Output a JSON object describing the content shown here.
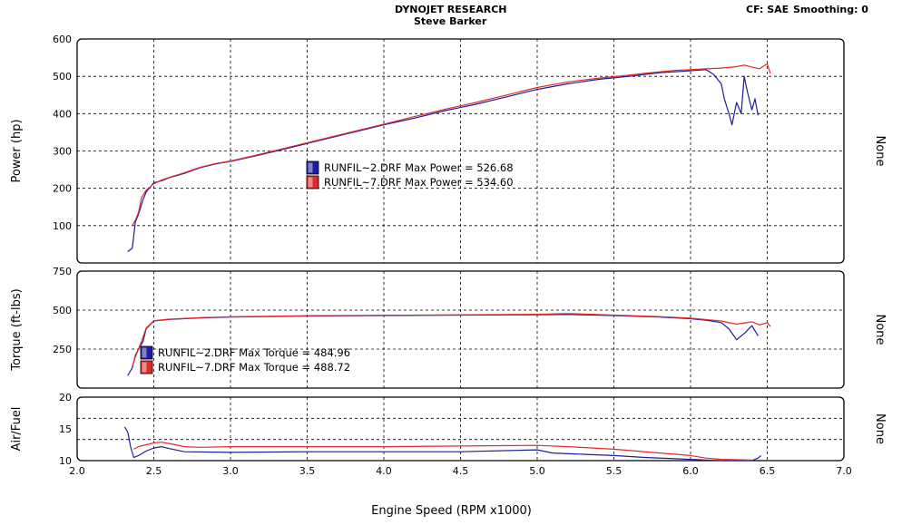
{
  "header": {
    "company": "DYNOJET RESEARCH",
    "operator": "Steve Barker",
    "cf_label": "CF: SAE",
    "smoothing_label": "Smoothing: 0"
  },
  "colors": {
    "run2": "#1d1d9e",
    "run7": "#e12a2a",
    "grid": "#000000"
  },
  "chart_data": {
    "type": "line",
    "xlabel": "Engine Speed (RPM x1000)",
    "xlim": [
      2.0,
      7.0
    ],
    "x_ticks": [
      "2.0",
      "2.5",
      "3.0",
      "3.5",
      "4.0",
      "4.5",
      "5.0",
      "5.5",
      "6.0",
      "6.5",
      "7.0"
    ],
    "grid": true,
    "panels": [
      {
        "id": "power",
        "ylabel": "Power (hp)",
        "right_label": "None",
        "ylim": [
          0,
          600
        ],
        "y_ticks": [
          "600",
          "500",
          "400",
          "300",
          "200",
          "100"
        ],
        "legend": [
          {
            "swatch": "blue",
            "text": "RUNFIL~2.DRF Max Power = 526.68"
          },
          {
            "swatch": "red",
            "text": "RUNFIL~7.DRF Max Power = 534.60"
          }
        ],
        "series": [
          {
            "name": "RUNFIL~2.DRF",
            "color": "blue",
            "x": [
              2.33,
              2.36,
              2.38,
              2.4,
              2.43,
              2.45,
              2.5,
              2.55,
              2.6,
              2.7,
              2.8,
              2.9,
              3.0,
              3.2,
              3.4,
              3.6,
              3.8,
              4.0,
              4.2,
              4.4,
              4.6,
              4.8,
              5.0,
              5.2,
              5.4,
              5.6,
              5.7,
              5.8,
              5.9,
              6.0,
              6.1,
              6.15,
              6.2,
              6.22,
              6.25,
              6.27,
              6.3,
              6.33,
              6.35,
              6.37,
              6.4,
              6.42,
              6.44
            ],
            "y": [
              30,
              40,
              110,
              130,
              170,
              190,
              215,
              220,
              228,
              240,
              255,
              265,
              272,
              290,
              310,
              330,
              350,
              370,
              388,
              408,
              425,
              445,
              465,
              480,
              492,
              500,
              505,
              510,
              512,
              515,
              518,
              505,
              480,
              440,
              400,
              370,
              430,
              400,
              500,
              460,
              410,
              440,
              395
            ]
          },
          {
            "name": "RUNFIL~7.DRF",
            "color": "red",
            "x": [
              2.36,
              2.38,
              2.4,
              2.42,
              2.45,
              2.5,
              2.55,
              2.6,
              2.7,
              2.8,
              2.9,
              3.0,
              3.2,
              3.4,
              3.6,
              3.8,
              4.0,
              4.2,
              4.4,
              4.6,
              4.8,
              5.0,
              5.2,
              5.4,
              5.6,
              5.7,
              5.8,
              5.9,
              6.0,
              6.1,
              6.2,
              6.3,
              6.35,
              6.4,
              6.45,
              6.5,
              6.52
            ],
            "y": [
              100,
              115,
              135,
              175,
              195,
              212,
              222,
              229,
              242,
              256,
              266,
              273,
              292,
              312,
              332,
              352,
              372,
              392,
              412,
              430,
              450,
              470,
              485,
              495,
              503,
              508,
              512,
              516,
              518,
              520,
              522,
              526,
              530,
              525,
              520,
              534,
              508
            ]
          }
        ]
      },
      {
        "id": "torque",
        "ylabel": "Torque (ft-lbs)",
        "right_label": "None",
        "ylim": [
          0,
          750
        ],
        "y_ticks": [
          "750",
          "500",
          "250"
        ],
        "legend": [
          {
            "swatch": "blue",
            "text": "RUNFIL~2.DRF Max Torque = 484.96"
          },
          {
            "swatch": "red",
            "text": "RUNFIL~7.DRF Max Torque = 488.72"
          }
        ],
        "series": [
          {
            "name": "RUNFIL~2.DRF",
            "color": "blue",
            "x": [
              2.33,
              2.36,
              2.38,
              2.4,
              2.43,
              2.45,
              2.5,
              2.6,
              2.8,
              3.0,
              3.5,
              4.0,
              4.5,
              5.0,
              5.2,
              5.5,
              5.8,
              6.0,
              6.1,
              6.2,
              6.25,
              6.3,
              6.35,
              6.4,
              6.44
            ],
            "y": [
              80,
              130,
              210,
              250,
              300,
              380,
              430,
              440,
              450,
              455,
              462,
              465,
              468,
              470,
              472,
              465,
              455,
              445,
              435,
              420,
              380,
              310,
              350,
              400,
              335
            ]
          },
          {
            "name": "RUNFIL~7.DRF",
            "color": "red",
            "x": [
              2.36,
              2.38,
              2.4,
              2.42,
              2.45,
              2.5,
              2.6,
              2.8,
              3.0,
              3.5,
              4.0,
              4.5,
              5.0,
              5.2,
              5.5,
              5.8,
              6.0,
              6.2,
              6.3,
              6.4,
              6.45,
              6.5,
              6.52
            ],
            "y": [
              140,
              200,
              250,
              300,
              385,
              432,
              442,
              452,
              457,
              464,
              467,
              470,
              473,
              478,
              468,
              458,
              448,
              430,
              410,
              425,
              405,
              420,
              395
            ]
          }
        ]
      },
      {
        "id": "af",
        "ylabel": "Air/Fuel",
        "right_label": "None",
        "ylim": [
          10,
          20
        ],
        "y_ticks": [
          "20",
          "15",
          "10"
        ],
        "series": [
          {
            "name": "RUNFIL~2.DRF",
            "color": "blue",
            "x": [
              2.31,
              2.33,
              2.35,
              2.37,
              2.4,
              2.45,
              2.5,
              2.55,
              2.6,
              2.7,
              3.0,
              3.5,
              4.0,
              4.5,
              5.0,
              5.1,
              5.3,
              5.5,
              5.7,
              5.9,
              6.0,
              6.1,
              6.2,
              6.4,
              6.44,
              6.46
            ],
            "y": [
              15.3,
              14.5,
              12.0,
              10.5,
              10.8,
              11.5,
              12.0,
              12.2,
              11.9,
              11.4,
              11.3,
              11.4,
              11.4,
              11.4,
              11.7,
              11.2,
              11.0,
              10.8,
              10.5,
              10.3,
              10.2,
              10.1,
              10.0,
              10.0,
              10.4,
              10.8
            ]
          },
          {
            "name": "RUNFIL~7.DRF",
            "color": "red",
            "x": [
              2.37,
              2.4,
              2.45,
              2.5,
              2.55,
              2.6,
              2.7,
              2.8,
              3.0,
              3.5,
              4.0,
              4.5,
              5.0,
              5.2,
              5.5,
              5.8,
              6.0,
              6.1,
              6.2,
              6.4
            ],
            "y": [
              11.8,
              12.2,
              12.5,
              12.8,
              12.9,
              12.7,
              12.2,
              12.1,
              12.2,
              12.2,
              12.2,
              12.3,
              12.4,
              12.2,
              11.8,
              11.2,
              10.8,
              10.4,
              10.2,
              10.1
            ]
          }
        ]
      }
    ]
  }
}
